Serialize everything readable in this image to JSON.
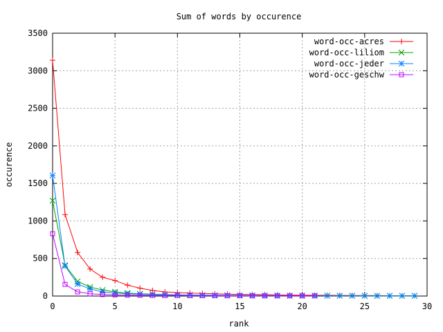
{
  "chart_data": {
    "type": "line",
    "title": "Sum of words by occurence",
    "xlabel": "rank",
    "ylabel": "occurence",
    "xlim": [
      0,
      30
    ],
    "ylim": [
      0,
      3500
    ],
    "xticks": [
      0,
      5,
      10,
      15,
      20,
      25,
      30
    ],
    "yticks": [
      0,
      500,
      1000,
      1500,
      2000,
      2500,
      3000,
      3500
    ],
    "grid": true,
    "legend_position": "top-right",
    "series": [
      {
        "name": "word-occ-acres",
        "color": "#ff0000",
        "marker": "plus",
        "x": [
          0,
          1,
          2,
          3,
          4,
          5,
          6,
          7,
          8,
          9,
          10,
          11,
          12,
          13,
          14,
          15,
          16,
          17,
          18,
          19,
          20,
          21,
          22,
          23,
          24,
          25,
          26,
          27,
          28,
          29
        ],
        "y": [
          3140,
          1085,
          580,
          360,
          250,
          205,
          145,
          105,
          75,
          55,
          45,
          40,
          35,
          30,
          25,
          22,
          20,
          18,
          15,
          14,
          12,
          11,
          10,
          9,
          8,
          7,
          6,
          5,
          5,
          4
        ]
      },
      {
        "name": "word-occ-liliom",
        "color": "#00a000",
        "marker": "cross",
        "x": [
          0,
          1,
          2,
          3,
          4,
          5,
          6,
          7,
          8,
          9,
          10,
          11,
          12,
          13,
          14,
          15,
          16,
          17,
          18,
          19,
          20,
          21,
          22,
          23,
          24,
          25,
          26,
          27,
          28,
          29
        ],
        "y": [
          1270,
          410,
          195,
          120,
          80,
          55,
          40,
          30,
          25,
          20,
          16,
          14,
          12,
          10,
          9,
          8,
          7,
          6,
          6,
          5,
          5,
          5,
          5,
          4,
          4,
          4,
          3,
          3,
          3,
          3
        ]
      },
      {
        "name": "word-occ-jeder",
        "color": "#0080ff",
        "marker": "star",
        "x": [
          0,
          1,
          2,
          3,
          4,
          5,
          6,
          7,
          8,
          9,
          10,
          11,
          12,
          13,
          14,
          15,
          16,
          17,
          18,
          19,
          20,
          21,
          22,
          23,
          24,
          25,
          26,
          27,
          28,
          29
        ],
        "y": [
          1605,
          400,
          160,
          95,
          55,
          40,
          30,
          25,
          20,
          16,
          14,
          12,
          11,
          10,
          9,
          8,
          7,
          6,
          6,
          5,
          5,
          5,
          4,
          4,
          4,
          3,
          3,
          3,
          3,
          3
        ]
      },
      {
        "name": "word-occ-geschw",
        "color": "#c000ff",
        "marker": "square",
        "x": [
          0,
          1,
          2,
          3,
          4,
          5,
          6,
          7,
          8,
          9,
          10,
          11,
          12,
          13,
          14,
          15,
          16,
          17,
          18,
          19,
          20,
          21
        ],
        "y": [
          830,
          155,
          55,
          30,
          20,
          15,
          12,
          10,
          8,
          7,
          6,
          5,
          5,
          4,
          4,
          4,
          3,
          3,
          3,
          3,
          3,
          3
        ]
      }
    ]
  }
}
